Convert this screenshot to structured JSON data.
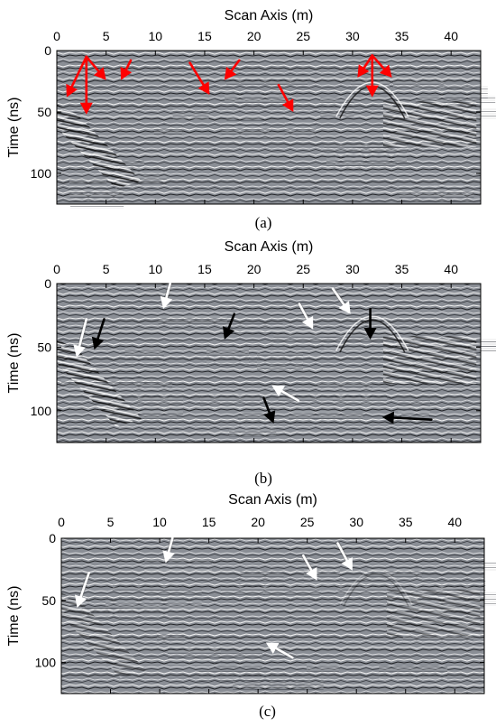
{
  "chart_data": [
    {
      "type": "heatmap",
      "panel_label": "(a)",
      "xlabel": "Scan Axis (m)",
      "ylabel": "Time (ns)",
      "xlim": [
        0,
        43
      ],
      "ylim": [
        0,
        125
      ],
      "y_direction": "down",
      "x_ticks": [
        "0",
        "5",
        "10",
        "15",
        "20",
        "25",
        "30",
        "35",
        "40"
      ],
      "y_ticks": [
        "0",
        "50",
        "100"
      ],
      "colormap": "grayscale",
      "arrows": [
        {
          "color": "#ff0000",
          "from": [
            3.0,
            5
          ],
          "to": [
            1.0,
            38
          ]
        },
        {
          "color": "#ff0000",
          "from": [
            3.0,
            5
          ],
          "to": [
            3.0,
            52
          ]
        },
        {
          "color": "#ff0000",
          "from": [
            3.0,
            5
          ],
          "to": [
            5.0,
            24
          ]
        },
        {
          "color": "#ff0000",
          "from": [
            7.5,
            8
          ],
          "to": [
            6.5,
            24
          ]
        },
        {
          "color": "#ff0000",
          "from": [
            13.5,
            10
          ],
          "to": [
            15.5,
            36
          ]
        },
        {
          "color": "#ff0000",
          "from": [
            18.5,
            8
          ],
          "to": [
            17.0,
            24
          ]
        },
        {
          "color": "#ff0000",
          "from": [
            22.5,
            28
          ],
          "to": [
            24.0,
            50
          ]
        },
        {
          "color": "#ff0000",
          "from": [
            32.0,
            4
          ],
          "to": [
            30.5,
            22
          ]
        },
        {
          "color": "#ff0000",
          "from": [
            32.0,
            4
          ],
          "to": [
            32.0,
            38
          ]
        },
        {
          "color": "#ff0000",
          "from": [
            32.0,
            4
          ],
          "to": [
            34.0,
            22
          ]
        }
      ]
    },
    {
      "type": "heatmap",
      "panel_label": "(b)",
      "xlabel": "Scan Axis (m)",
      "ylabel": "Time (ns)",
      "xlim": [
        0,
        43
      ],
      "ylim": [
        0,
        125
      ],
      "y_direction": "down",
      "x_ticks": [
        "0",
        "5",
        "10",
        "15",
        "20",
        "25",
        "30",
        "35",
        "40"
      ],
      "y_ticks": [
        "0",
        "50",
        "100"
      ],
      "colormap": "grayscale",
      "arrows": [
        {
          "color": "#ffffff",
          "from": [
            3.0,
            28
          ],
          "to": [
            2.0,
            58
          ]
        },
        {
          "color": "#000000",
          "from": [
            4.8,
            28
          ],
          "to": [
            3.8,
            52
          ]
        },
        {
          "color": "#ffffff",
          "from": [
            11.5,
            0
          ],
          "to": [
            10.8,
            20
          ]
        },
        {
          "color": "#000000",
          "from": [
            18.0,
            24
          ],
          "to": [
            17.0,
            44
          ]
        },
        {
          "color": "#ffffff",
          "from": [
            24.6,
            16
          ],
          "to": [
            26.0,
            36
          ]
        },
        {
          "color": "#ffffff",
          "from": [
            28.0,
            4
          ],
          "to": [
            29.8,
            24
          ]
        },
        {
          "color": "#000000",
          "from": [
            31.8,
            20
          ],
          "to": [
            31.8,
            44
          ]
        },
        {
          "color": "#ffffff",
          "from": [
            24.5,
            92
          ],
          "to": [
            21.8,
            80
          ]
        },
        {
          "color": "#000000",
          "from": [
            21.0,
            90
          ],
          "to": [
            22.0,
            110
          ]
        },
        {
          "color": "#000000",
          "from": [
            38.0,
            107
          ],
          "to": [
            33.0,
            105
          ]
        }
      ]
    },
    {
      "type": "heatmap",
      "panel_label": "(c)",
      "xlabel": "Scan Axis (m)",
      "ylabel": "Time (ns)",
      "xlim": [
        0,
        43
      ],
      "ylim": [
        0,
        125
      ],
      "y_direction": "down",
      "x_ticks": [
        "0",
        "5",
        "10",
        "15",
        "20",
        "25",
        "30",
        "35",
        "40"
      ],
      "y_ticks": [
        "0",
        "50",
        "100"
      ],
      "colormap": "grayscale",
      "arrows": [
        {
          "color": "#ffffff",
          "from": [
            2.8,
            28
          ],
          "to": [
            1.6,
            56
          ]
        },
        {
          "color": "#ffffff",
          "from": [
            11.3,
            0
          ],
          "to": [
            10.6,
            20
          ]
        },
        {
          "color": "#ffffff",
          "from": [
            24.6,
            14
          ],
          "to": [
            26.0,
            34
          ]
        },
        {
          "color": "#ffffff",
          "from": [
            28.1,
            4
          ],
          "to": [
            29.6,
            26
          ]
        },
        {
          "color": "#ffffff",
          "from": [
            23.5,
            96
          ],
          "to": [
            20.8,
            84
          ]
        }
      ]
    }
  ]
}
